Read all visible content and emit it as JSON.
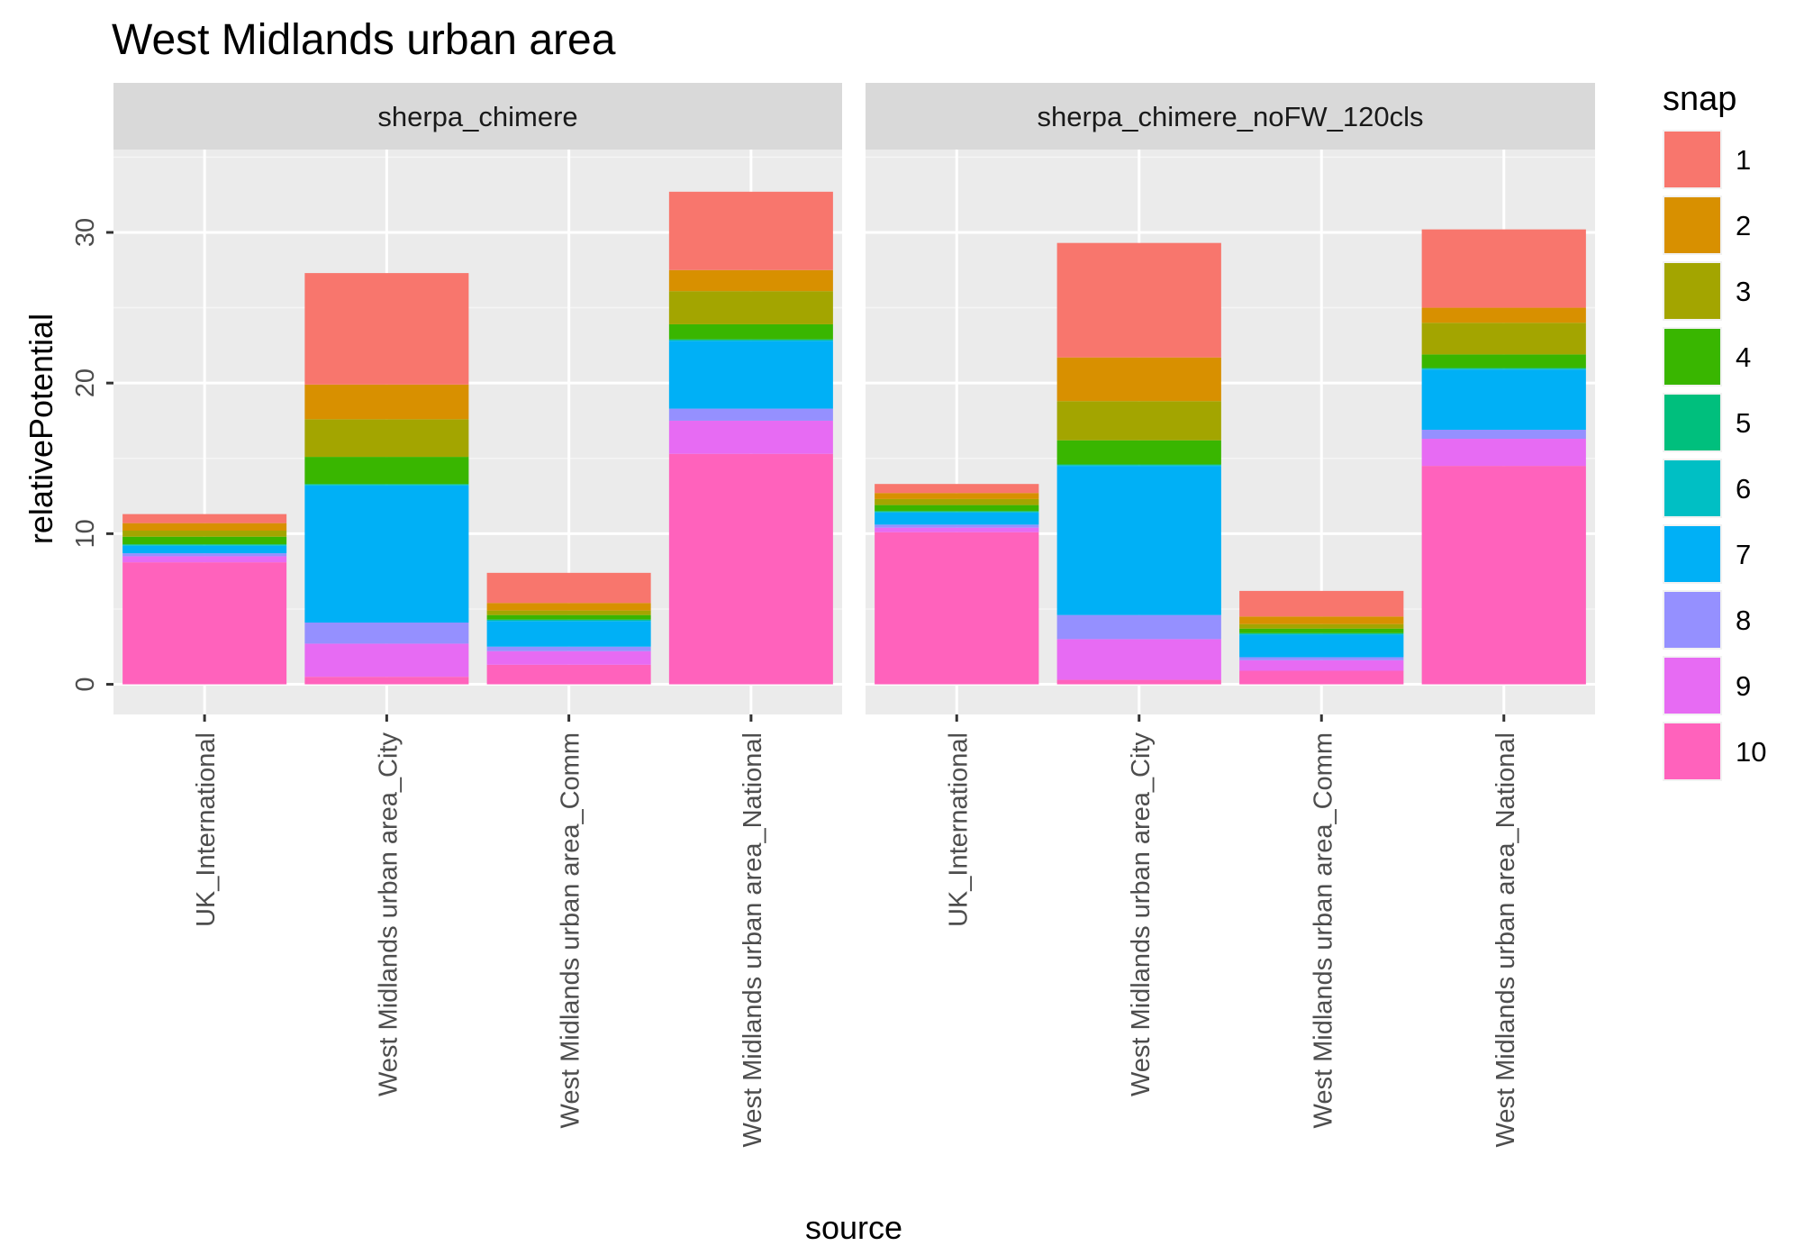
{
  "chart_data": {
    "type": "bar",
    "stacked": true,
    "title": "West Midlands urban area",
    "xlabel": "source",
    "ylabel": "relativePotential",
    "ylim": [
      -2,
      35.5
    ],
    "yticks": [
      0,
      10,
      20,
      30
    ],
    "ytick_labels": [
      "0",
      "10",
      "20",
      "30"
    ],
    "grid": true,
    "legend_position": "right",
    "legend_title": "snap",
    "categories": [
      "UK_International",
      "West Midlands urban area_City",
      "West Midlands urban area_Comm",
      "West Midlands urban area_National"
    ],
    "snap_levels": [
      {
        "label": "1",
        "color": "#F8766D"
      },
      {
        "label": "2",
        "color": "#D89000"
      },
      {
        "label": "3",
        "color": "#A3A500"
      },
      {
        "label": "4",
        "color": "#39B600"
      },
      {
        "label": "5",
        "color": "#00BF7D"
      },
      {
        "label": "6",
        "color": "#00BFC4"
      },
      {
        "label": "7",
        "color": "#00B0F6"
      },
      {
        "label": "8",
        "color": "#9590FF"
      },
      {
        "label": "9",
        "color": "#E76BF3"
      },
      {
        "label": "10",
        "color": "#FF62BC"
      }
    ],
    "panels": [
      {
        "name": "sherpa_chimere",
        "series": [
          {
            "snap": "1",
            "values": [
              0.6,
              7.4,
              2.0,
              5.2
            ]
          },
          {
            "snap": "2",
            "values": [
              0.5,
              2.3,
              0.5,
              1.4
            ]
          },
          {
            "snap": "3",
            "values": [
              0.4,
              2.5,
              0.3,
              2.2
            ]
          },
          {
            "snap": "4",
            "values": [
              0.5,
              1.8,
              0.3,
              1.0
            ]
          },
          {
            "snap": "5",
            "values": [
              0.05,
              0.05,
              0.05,
              0.05
            ]
          },
          {
            "snap": "6",
            "values": [
              0.05,
              0.05,
              0.05,
              0.05
            ]
          },
          {
            "snap": "7",
            "values": [
              0.5,
              9.1,
              1.7,
              4.5
            ]
          },
          {
            "snap": "8",
            "values": [
              0.2,
              1.4,
              0.3,
              0.8
            ]
          },
          {
            "snap": "9",
            "values": [
              0.4,
              2.2,
              0.9,
              2.2
            ]
          },
          {
            "snap": "10",
            "values": [
              8.1,
              0.5,
              1.3,
              15.3
            ]
          }
        ]
      },
      {
        "name": "sherpa_chimere_noFW_120cls",
        "series": [
          {
            "snap": "1",
            "values": [
              0.6,
              7.6,
              1.7,
              5.2
            ]
          },
          {
            "snap": "2",
            "values": [
              0.4,
              2.9,
              0.5,
              1.0
            ]
          },
          {
            "snap": "3",
            "values": [
              0.4,
              2.6,
              0.3,
              2.1
            ]
          },
          {
            "snap": "4",
            "values": [
              0.4,
              1.6,
              0.3,
              0.9
            ]
          },
          {
            "snap": "5",
            "values": [
              0.05,
              0.05,
              0.05,
              0.05
            ]
          },
          {
            "snap": "6",
            "values": [
              0.05,
              0.05,
              0.05,
              0.05
            ]
          },
          {
            "snap": "7",
            "values": [
              0.8,
              9.9,
              1.5,
              4.0
            ]
          },
          {
            "snap": "8",
            "values": [
              0.2,
              1.6,
              0.2,
              0.6
            ]
          },
          {
            "snap": "9",
            "values": [
              0.3,
              2.7,
              0.7,
              1.8
            ]
          },
          {
            "snap": "10",
            "values": [
              10.1,
              0.3,
              0.9,
              14.5
            ]
          }
        ]
      }
    ]
  }
}
